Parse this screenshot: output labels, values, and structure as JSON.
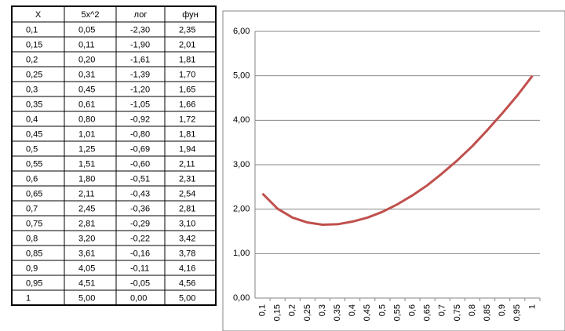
{
  "table": {
    "header": [
      "X",
      "5x^2",
      "лог",
      "фун"
    ],
    "rows": [
      [
        "0,1",
        "0,05",
        "-2,30",
        "2,35"
      ],
      [
        "0,15",
        "0,11",
        "-1,90",
        "2,01"
      ],
      [
        "0,2",
        "0,20",
        "-1,61",
        "1,81"
      ],
      [
        "0,25",
        "0,31",
        "-1,39",
        "1,70"
      ],
      [
        "0,3",
        "0,45",
        "-1,20",
        "1,65"
      ],
      [
        "0,35",
        "0,61",
        "-1,05",
        "1,66"
      ],
      [
        "0,4",
        "0,80",
        "-0,92",
        "1,72"
      ],
      [
        "0,45",
        "1,01",
        "-0,80",
        "1,81"
      ],
      [
        "0,5",
        "1,25",
        "-0,69",
        "1,94"
      ],
      [
        "0,55",
        "1,51",
        "-0,60",
        "2,11"
      ],
      [
        "0,6",
        "1,80",
        "-0,51",
        "2,31"
      ],
      [
        "0,65",
        "2,11",
        "-0,43",
        "2,54"
      ],
      [
        "0,7",
        "2,45",
        "-0,36",
        "2,81"
      ],
      [
        "0,75",
        "2,81",
        "-0,29",
        "3,10"
      ],
      [
        "0,8",
        "3,20",
        "-0,22",
        "3,42"
      ],
      [
        "0,85",
        "3,61",
        "-0,16",
        "3,78"
      ],
      [
        "0,9",
        "4,05",
        "-0,11",
        "4,16"
      ],
      [
        "0,95",
        "4,51",
        "-0,05",
        "4,56"
      ],
      [
        "1",
        "5,00",
        "0,00",
        "5,00"
      ]
    ]
  },
  "chart_data": {
    "type": "line",
    "categories": [
      "0,1",
      "0,15",
      "0,2",
      "0,25",
      "0,3",
      "0,35",
      "0,4",
      "0,45",
      "0,5",
      "0,55",
      "0,6",
      "0,65",
      "0,7",
      "0,75",
      "0,8",
      "0,85",
      "0,9",
      "0,95",
      "1"
    ],
    "values": [
      2.35,
      2.01,
      1.81,
      1.7,
      1.65,
      1.66,
      1.72,
      1.81,
      1.94,
      2.11,
      2.31,
      2.54,
      2.81,
      3.1,
      3.42,
      3.78,
      4.16,
      4.56,
      5.0
    ],
    "color": "#c0504d",
    "ylim": [
      0,
      6
    ],
    "yticks": [
      {
        "value": 0,
        "label": "0,00"
      },
      {
        "value": 1,
        "label": "1,00"
      },
      {
        "value": 2,
        "label": "2,00"
      },
      {
        "value": 3,
        "label": "3,00"
      },
      {
        "value": 4,
        "label": "4,00"
      },
      {
        "value": 5,
        "label": "5,00"
      },
      {
        "value": 6,
        "label": "6,00"
      }
    ],
    "grid": true
  }
}
